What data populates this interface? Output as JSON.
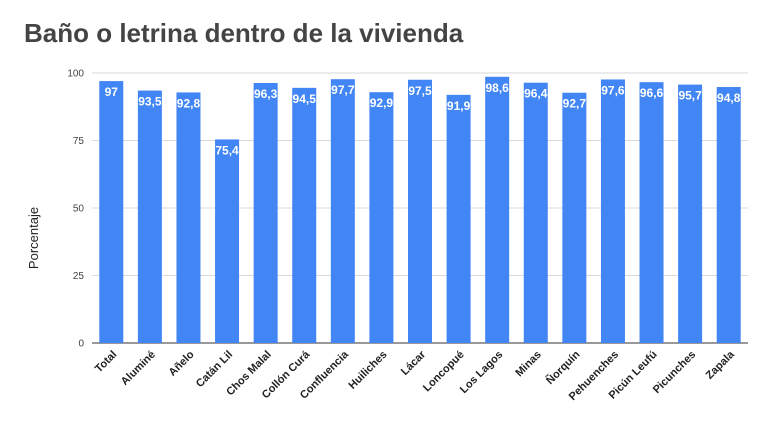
{
  "chart_data": {
    "type": "bar",
    "title": "Baño o letrina dentro de la vivienda",
    "xlabel": "",
    "ylabel": "Porcentaje",
    "ylim": [
      0,
      100
    ],
    "yticks": [
      0,
      25,
      50,
      75,
      100
    ],
    "grid": true,
    "bar_color": "#4285f4",
    "categories": [
      "Total",
      "Aluminé",
      "Añelo",
      "Catán Lil",
      "Chos Malal",
      "Collón Curá",
      "Confluencia",
      "Huiliches",
      "Lácar",
      "Loncopué",
      "Los Lagos",
      "Minas",
      "Ñorquín",
      "Pehuenches",
      "Picún Leufú",
      "Picunches",
      "Zapala"
    ],
    "values": [
      97,
      93.5,
      92.8,
      75.4,
      96.3,
      94.5,
      97.7,
      92.9,
      97.5,
      91.9,
      98.6,
      96.4,
      92.7,
      97.6,
      96.6,
      95.7,
      94.8
    ],
    "data_labels": [
      "97",
      "93,5",
      "92,8",
      "75,4",
      "96,3",
      "94,5",
      "97,7",
      "92,9",
      "97,5",
      "91,9",
      "98,6",
      "96,4",
      "92,7",
      "97,6",
      "96,6",
      "95,7",
      "94,8"
    ]
  }
}
